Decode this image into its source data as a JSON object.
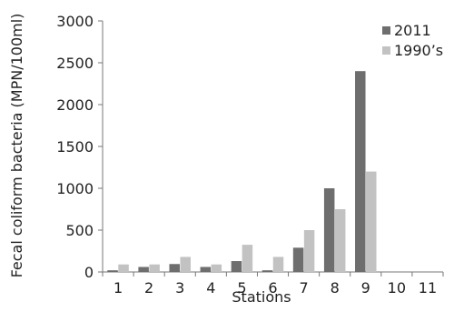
{
  "chart_data": {
    "type": "bar",
    "title": "",
    "xlabel": "Stations",
    "ylabel": "Fecal coliform bacteria (MPN/100ml)",
    "categories": [
      "1",
      "2",
      "3",
      "4",
      "5",
      "6",
      "7",
      "8",
      "9",
      "10",
      "11"
    ],
    "series": [
      {
        "name": "2011",
        "color": "#6e6e6e",
        "values": [
          20,
          60,
          95,
          60,
          130,
          20,
          290,
          1000,
          2400,
          0,
          0
        ]
      },
      {
        "name": "1990’s",
        "color": "#c2c2c2",
        "values": [
          90,
          90,
          180,
          90,
          325,
          180,
          500,
          750,
          1200,
          0,
          0
        ]
      }
    ],
    "ylim": [
      0,
      3000
    ],
    "yticks": [
      "0",
      "500",
      "1000",
      "1500",
      "2000",
      "2500",
      "3000"
    ],
    "grid": false,
    "legend_position": "top-right"
  }
}
